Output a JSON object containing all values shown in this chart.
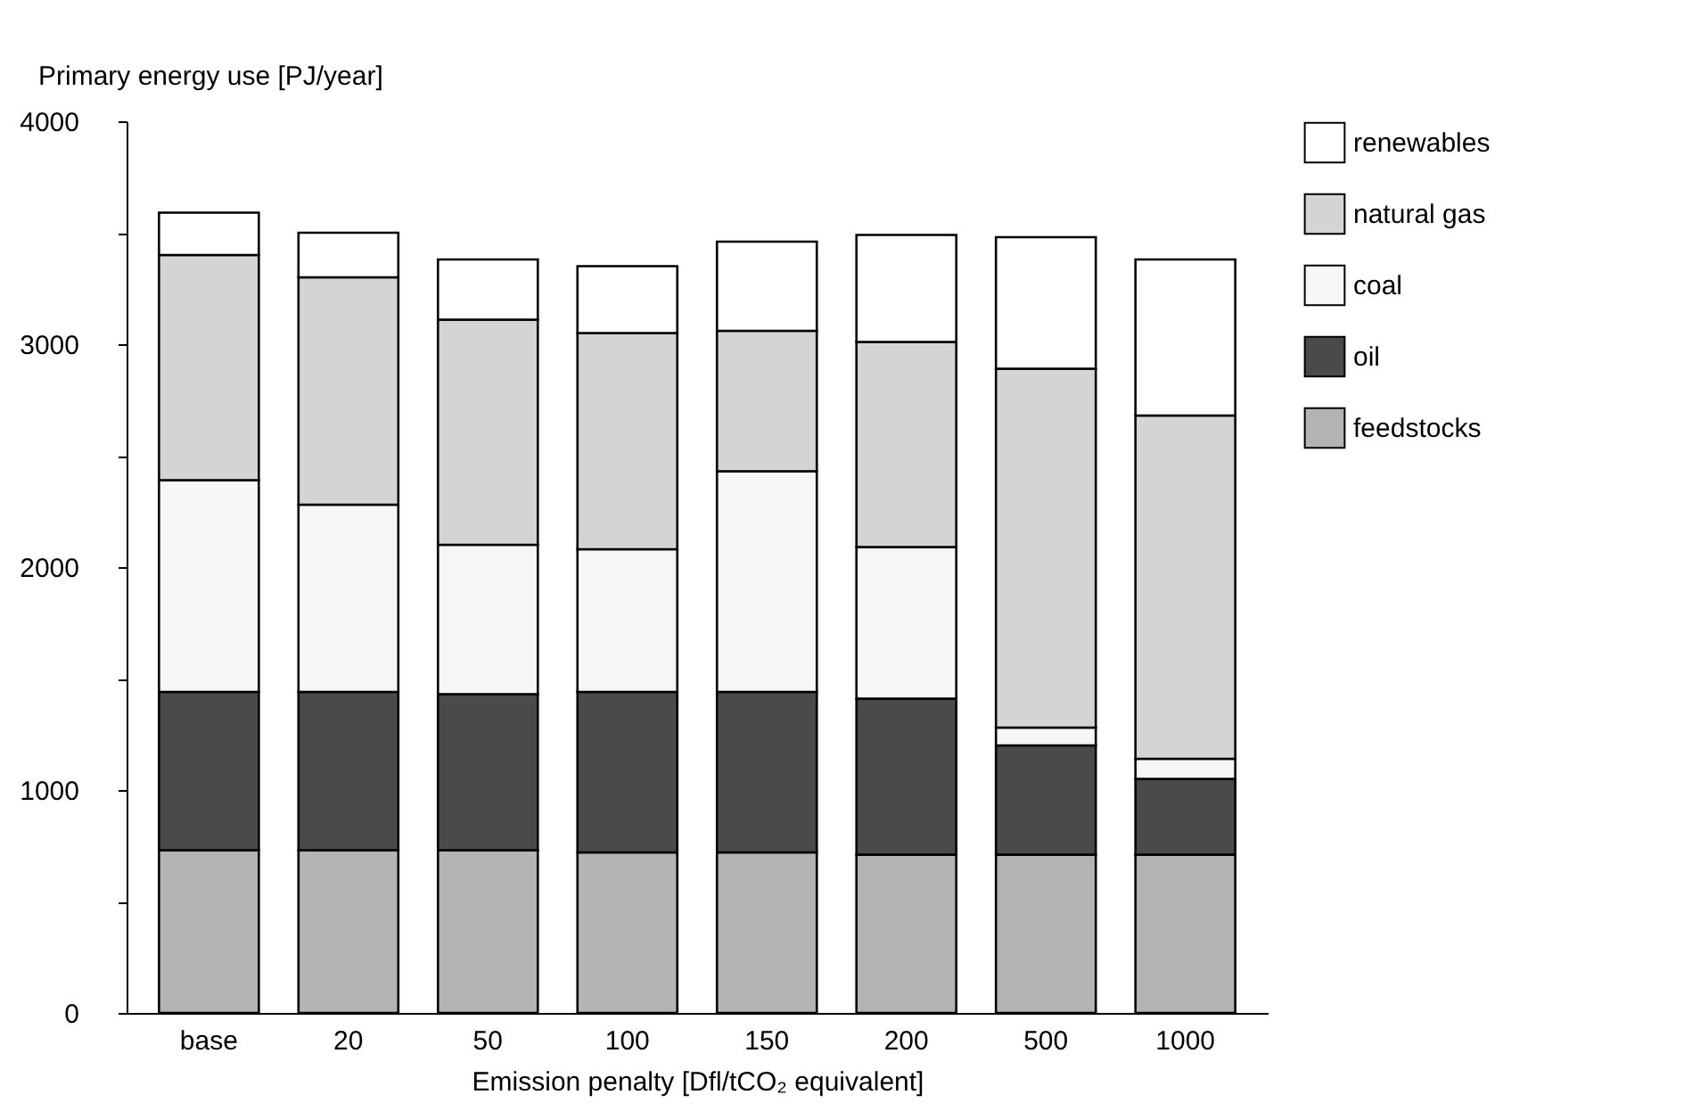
{
  "chart_data": {
    "type": "bar",
    "stacked": true,
    "xlabel": "Emission penalty [Dfl/tCO₂ equivalent]",
    "ylabel": "Primary energy use [PJ/year]",
    "categories": [
      "base",
      "20",
      "50",
      "100",
      "150",
      "200",
      "500",
      "1000"
    ],
    "series": [
      {
        "name": "feedstocks",
        "color": "#b4b4b4",
        "values": [
          730,
          730,
          730,
          720,
          720,
          710,
          710,
          710
        ]
      },
      {
        "name": "oil",
        "color": "#4a4a4a",
        "values": [
          710,
          710,
          700,
          720,
          720,
          700,
          490,
          340
        ]
      },
      {
        "name": "coal",
        "color": "#f6f6f6",
        "values": [
          950,
          840,
          670,
          640,
          990,
          680,
          80,
          90
        ]
      },
      {
        "name": "natural gas",
        "color": "#d4d4d4",
        "values": [
          1010,
          1020,
          1010,
          970,
          630,
          920,
          1610,
          1540
        ]
      },
      {
        "name": "renewables",
        "color": "#ffffff",
        "values": [
          190,
          200,
          270,
          300,
          400,
          480,
          590,
          700
        ]
      }
    ],
    "ylim": [
      0,
      4000
    ],
    "yticks": [
      0,
      {
        "value": 500,
        "label": null
      },
      1000,
      {
        "value": 1500,
        "label": null
      },
      2000,
      {
        "value": 2500,
        "label": null
      },
      3000,
      {
        "value": 3500,
        "label": null
      },
      4000
    ],
    "grid": false,
    "legend": "top right"
  }
}
